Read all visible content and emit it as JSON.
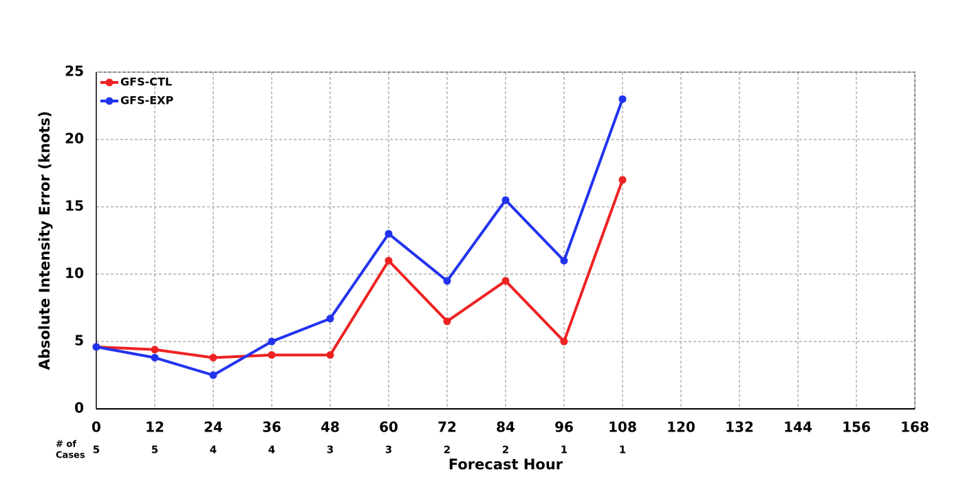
{
  "chart_data": {
    "type": "line",
    "x_label": "Forecast Hour",
    "y_label": "Absolute Intensity Error (knots)",
    "x": [
      0,
      12,
      24,
      36,
      48,
      60,
      72,
      84,
      96,
      108
    ],
    "series": [
      {
        "name": "GFS-CTL",
        "color": "#ee2222",
        "values": [
          4.6,
          4.4,
          3.8,
          4.0,
          4.0,
          11,
          6.5,
          9.5,
          5,
          17
        ]
      },
      {
        "name": "GFS-EXP",
        "color": "#2233ee",
        "values": [
          4.6,
          3.8,
          2.5,
          5,
          6.7,
          13,
          9.5,
          15.5,
          11,
          23
        ]
      }
    ],
    "cases_label": [
      "# of",
      "Cases"
    ],
    "cases": [
      5,
      5,
      4,
      4,
      3,
      3,
      2,
      2,
      1,
      1
    ],
    "xlim": [
      0,
      168
    ],
    "xticks": [
      0,
      12,
      24,
      36,
      48,
      60,
      72,
      84,
      96,
      108,
      120,
      132,
      144,
      156,
      168
    ],
    "ylim": [
      0,
      25
    ],
    "yticks": [
      0,
      5,
      10,
      15,
      20,
      25
    ],
    "grid": true,
    "legend": "upper-left"
  }
}
